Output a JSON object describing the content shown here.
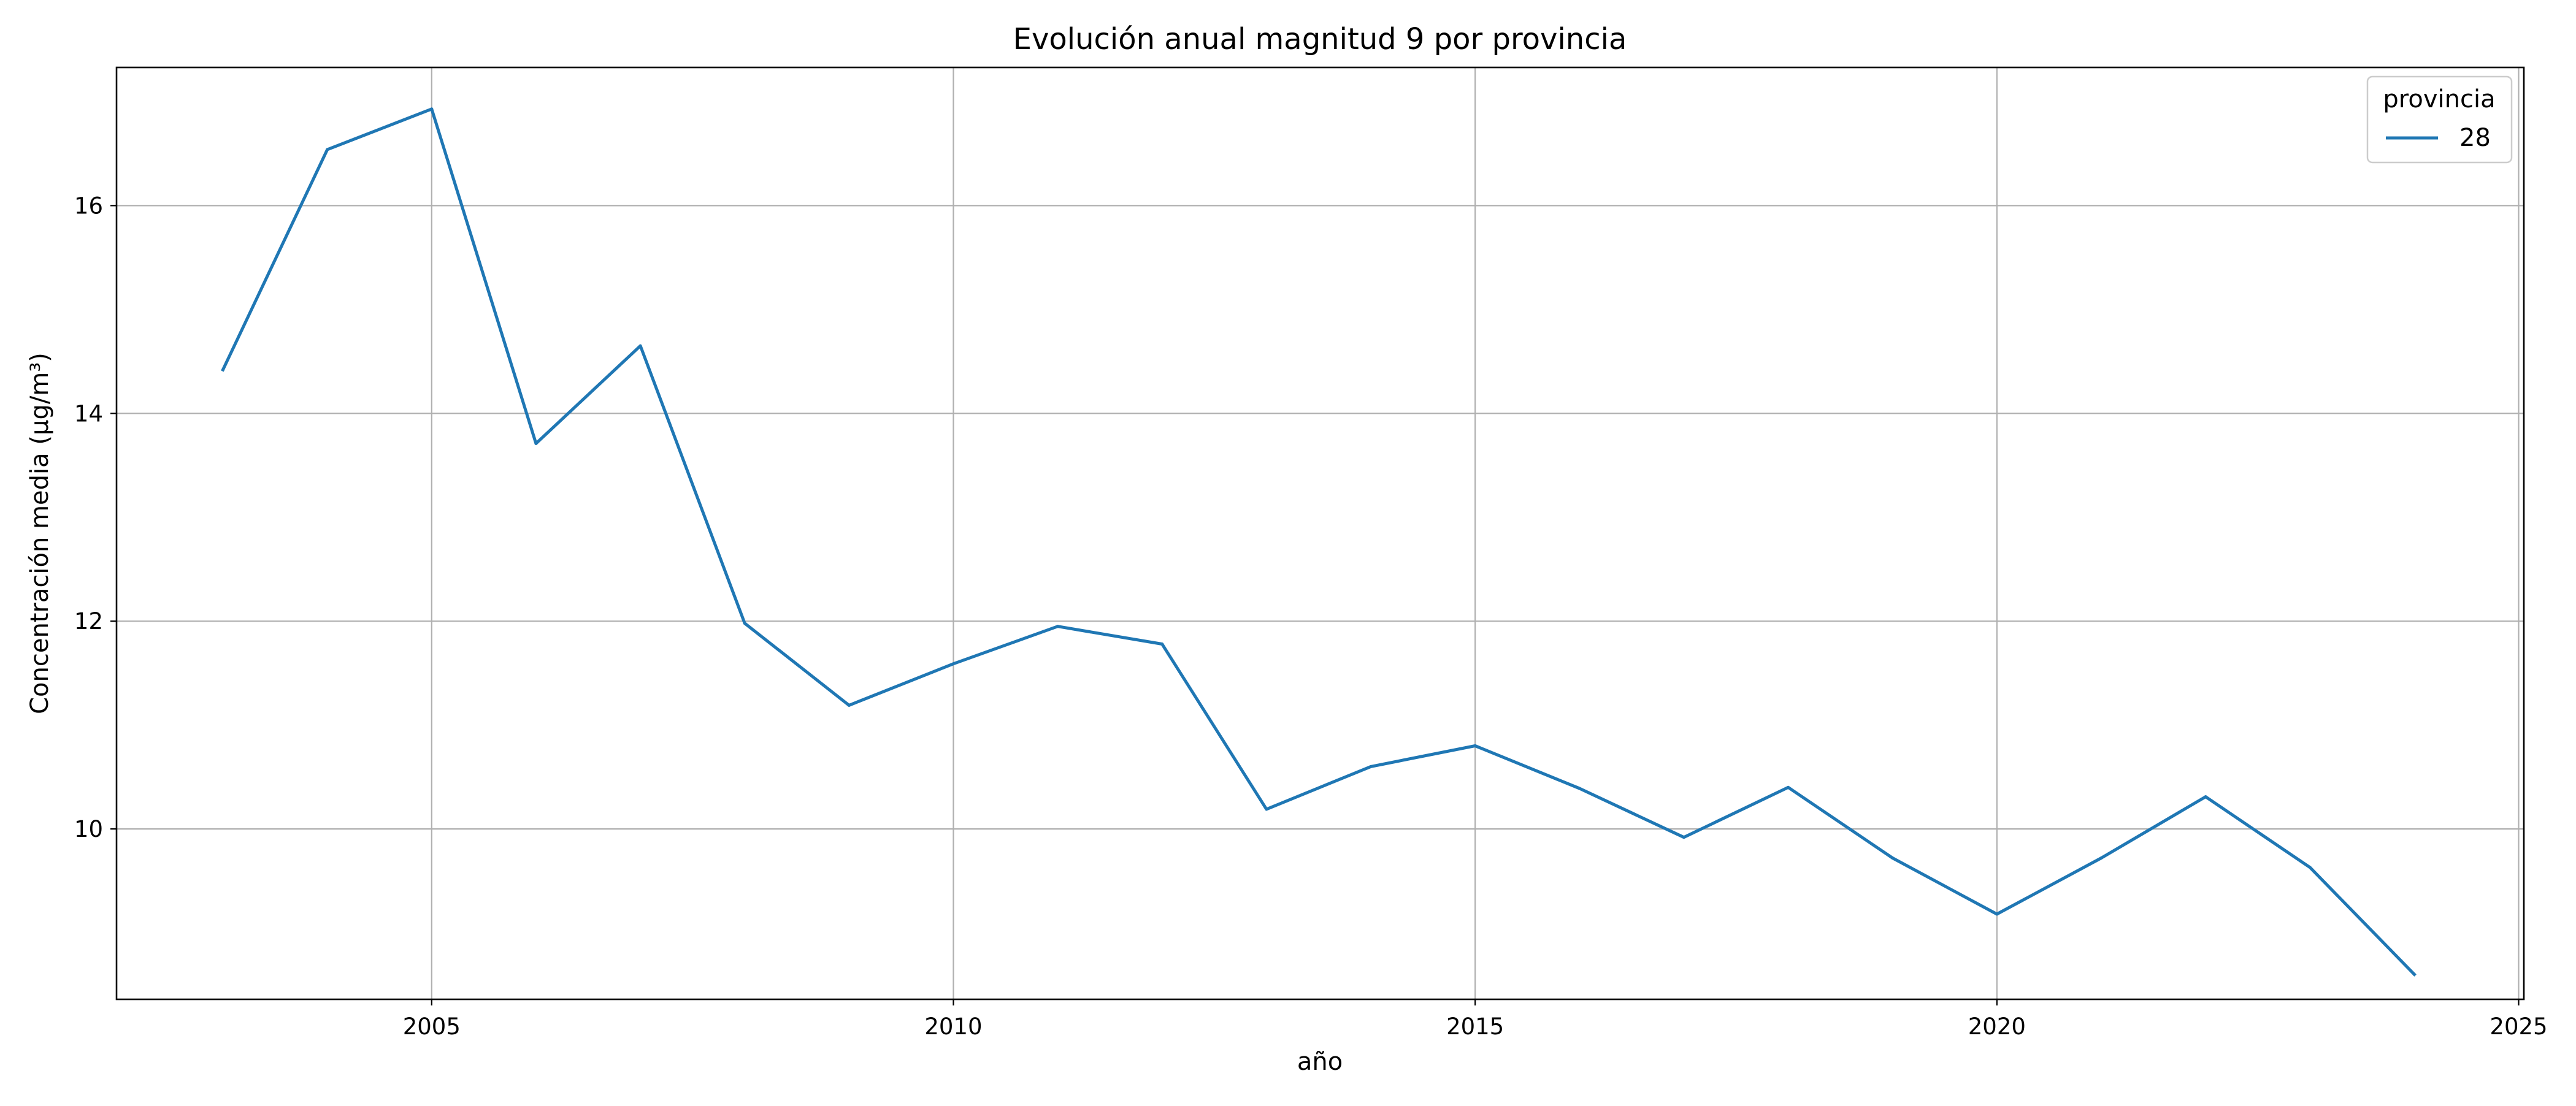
{
  "chart_data": {
    "type": "line",
    "title": "Evolución anual magnitud 9 por provincia",
    "xlabel": "año",
    "ylabel": "Concentración media (µg/m³)",
    "xlim": [
      2001.98,
      2025.05
    ],
    "ylim": [
      8.36,
      17.33
    ],
    "x_ticks": [
      2005,
      2010,
      2015,
      2020,
      2025
    ],
    "y_ticks": [
      10,
      12,
      14,
      16
    ],
    "grid": true,
    "legend": {
      "title": "provincia",
      "placement": "top-right"
    },
    "x": [
      2003,
      2004,
      2005,
      2006,
      2007,
      2008,
      2009,
      2010,
      2011,
      2012,
      2013,
      2014,
      2015,
      2016,
      2017,
      2018,
      2019,
      2020,
      2021,
      2022,
      2023,
      2024
    ],
    "series": [
      {
        "name": "28",
        "color": "#1f77b4",
        "values": [
          14.42,
          16.54,
          16.93,
          13.71,
          14.65,
          11.98,
          11.19,
          11.59,
          11.95,
          11.78,
          10.19,
          10.6,
          10.8,
          10.39,
          9.92,
          10.4,
          9.72,
          9.18,
          9.72,
          10.31,
          9.63,
          8.6
        ]
      }
    ]
  }
}
